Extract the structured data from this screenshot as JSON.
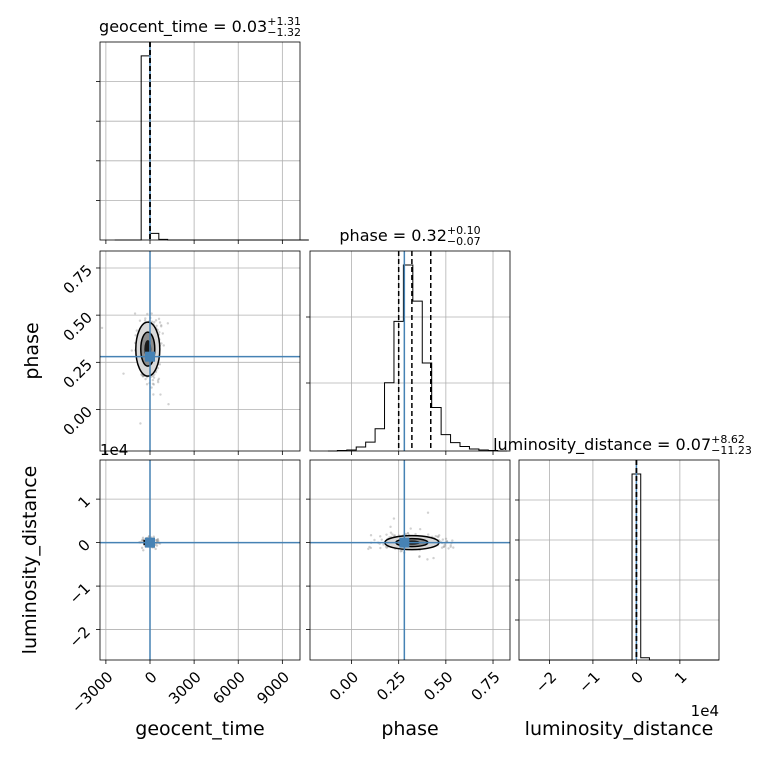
{
  "chart_data": {
    "type": "corner",
    "parameters": [
      "geocent_time",
      "phase",
      "luminosity_distance"
    ],
    "truths": {
      "geocent_time": 0,
      "phase": 0.28,
      "luminosity_distance": 0
    },
    "marginals": [
      {
        "parameter": "geocent_time",
        "title": "geocent_time = 0.03",
        "title_base": "geocent_time = 0.03",
        "title_plus": "+1.31",
        "title_minus": "−1.32",
        "quantiles": [
          -1.29,
          0.03,
          1.34
        ],
        "bin_edges": [
          -2400,
          -1800,
          -1200,
          -600,
          0,
          600,
          1200,
          1800,
          2400,
          3000,
          3600,
          4200,
          4800,
          5400,
          6000,
          6600,
          7200,
          7800,
          8400,
          9000,
          9600,
          10200,
          10800
        ],
        "counts": [
          0,
          0,
          0,
          970,
          35,
          3,
          0,
          0,
          0,
          0,
          0,
          0,
          0,
          0,
          0,
          0,
          0,
          0,
          0,
          0,
          0,
          0
        ]
      },
      {
        "parameter": "phase",
        "title": "phase = 0.32",
        "title_base": "phase = 0.32",
        "title_plus": "+0.10",
        "title_minus": "−0.07",
        "quantiles": [
          0.25,
          0.32,
          0.42
        ],
        "bin_edges": [
          -0.125,
          -0.075,
          -0.025,
          0.025,
          0.075,
          0.125,
          0.175,
          0.225,
          0.275,
          0.325,
          0.375,
          0.425,
          0.475,
          0.525,
          0.575,
          0.625,
          0.675,
          0.725,
          0.775,
          0.825
        ],
        "counts": [
          0,
          1,
          2,
          8,
          18,
          45,
          138,
          262,
          376,
          303,
          178,
          88,
          33,
          17,
          9,
          4,
          2,
          1,
          0
        ]
      },
      {
        "parameter": "luminosity_distance",
        "title": "luminosity_distance = 0.07",
        "title_base": "luminosity_distance = 0.07",
        "title_plus": "+8.62",
        "title_minus": "−11.23",
        "quantiles": [
          -11.16,
          0.07,
          8.69
        ],
        "bin_edges": [
          -27000,
          -25000,
          -23000,
          -21000,
          -19000,
          -17000,
          -15000,
          -13000,
          -11000,
          -9000,
          -7000,
          -5000,
          -3000,
          -1000,
          1000,
          3000,
          5000,
          7000,
          9000,
          11000,
          13000,
          15000,
          17000,
          19000
        ],
        "counts": [
          0,
          0,
          0,
          0,
          0,
          0,
          0,
          0,
          0,
          0,
          0,
          0,
          0,
          975,
          12,
          0,
          0,
          0,
          0,
          0,
          0,
          0,
          0
        ]
      }
    ],
    "axes": {
      "geocent_time": {
        "label": "geocent_time",
        "range": [
          -3400,
          10200
        ],
        "ticks": [
          -3000,
          0,
          3000,
          6000,
          9000
        ],
        "tick_labels": [
          "−3000",
          "0",
          "3000",
          "6000",
          "9000"
        ]
      },
      "phase": {
        "label": "phase",
        "range": [
          -0.22,
          0.84
        ],
        "ticks": [
          0.0,
          0.25,
          0.5,
          0.75
        ],
        "tick_labels": [
          "0.00",
          "0.25",
          "0.50",
          "0.75"
        ]
      },
      "luminosity_distance": {
        "label": "luminosity_distance",
        "range": [
          -27000,
          19000
        ],
        "ticks": [
          -20000,
          -10000,
          0,
          10000
        ],
        "tick_labels": [
          "−2",
          "−1",
          "0",
          "1"
        ],
        "offset_text": "1e4"
      }
    },
    "phase_axis_x": {
      "range": [
        -0.22,
        0.84
      ],
      "ticks": [
        0.0,
        0.25,
        0.5,
        0.75
      ],
      "tick_labels": [
        "0.00",
        "0.25",
        "0.50",
        "0.75"
      ]
    },
    "grid": true,
    "truth_color": "#4682b4",
    "hist_color": "#000000",
    "grid_color": "#b0b0b0"
  }
}
